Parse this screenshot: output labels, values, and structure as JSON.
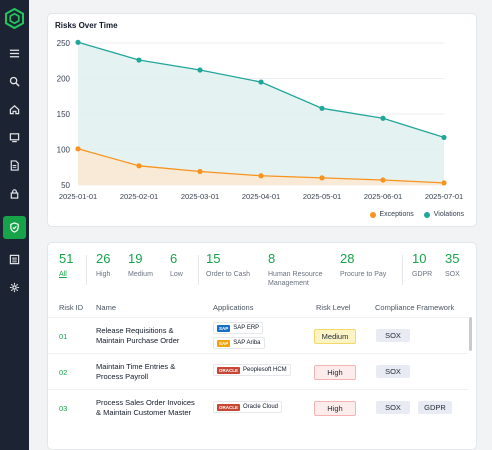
{
  "sidebar": {
    "items": [
      {
        "icon": "menu-icon"
      },
      {
        "icon": "search-icon"
      },
      {
        "icon": "home-icon"
      },
      {
        "icon": "monitor-icon"
      },
      {
        "icon": "document-icon"
      },
      {
        "icon": "lock-icon"
      },
      {
        "icon": "shield-icon",
        "active": true
      },
      {
        "icon": "list-icon"
      },
      {
        "icon": "gear-icon"
      }
    ],
    "accent": "#16a34a",
    "background": "#1c2434"
  },
  "chart_data": {
    "type": "area",
    "title": "Risks Over Time",
    "categories": [
      "2025-01-01",
      "2025-02-01",
      "2025-03-01",
      "2025-04-01",
      "2025-05-01",
      "2025-06-01",
      "2025-07-01"
    ],
    "yticks": [
      250,
      200,
      150,
      100,
      50
    ],
    "ylim": [
      50,
      250
    ],
    "grid": true,
    "legend_position": "bottom-right",
    "series": [
      {
        "name": "Exceptions",
        "color": "#f7931e",
        "values": [
          101,
          77,
          69,
          63,
          60,
          57,
          53
        ]
      },
      {
        "name": "Violations",
        "color": "#21a69a",
        "values": [
          251,
          226,
          212,
          195,
          158,
          144,
          117
        ]
      }
    ]
  },
  "stats": [
    {
      "value": "51",
      "label": "All",
      "active": true
    },
    {
      "value": "26",
      "label": "High"
    },
    {
      "value": "19",
      "label": "Medium"
    },
    {
      "value": "6",
      "label": "Low"
    },
    {
      "value": "15",
      "label": "Order to Cash"
    },
    {
      "value": "8",
      "label": "Human Resource Management"
    },
    {
      "value": "28",
      "label": "Procure to Pay"
    },
    {
      "value": "10",
      "label": "GDPR"
    },
    {
      "value": "35",
      "label": "SOX"
    }
  ],
  "table": {
    "headers": {
      "id": "Risk ID",
      "name": "Name",
      "apps": "Applications",
      "level": "Risk Level",
      "framework": "Compliance Framework"
    },
    "rows": [
      {
        "id": "01",
        "name_line1": "Release Requisitions &",
        "name_line2": "Maintain Purchase Order",
        "apps": [
          {
            "logo": "SAP",
            "label": "SAP ERP",
            "logo_color": "#1870c5"
          },
          {
            "logo": "SAP",
            "label": "SAP Ariba",
            "logo_color": "#f0a30a"
          }
        ],
        "level": "Medium",
        "frameworks": [
          "SOX"
        ]
      },
      {
        "id": "02",
        "name_line1": "Maintain Time Entries &",
        "name_line2": "Process Payroll",
        "apps": [
          {
            "logo": "ORACLE",
            "label": "Peoplesoft HCM",
            "logo_color": "#c74634"
          }
        ],
        "level": "High",
        "frameworks": [
          "SOX"
        ]
      },
      {
        "id": "03",
        "name_line1": "Process Sales Order Invoices",
        "name_line2": "& Maintain Customer Master",
        "apps": [
          {
            "logo": "ORACLE",
            "label": "Oracle Cloud",
            "logo_color": "#c74634"
          }
        ],
        "level": "High",
        "frameworks": [
          "SOX",
          "GDPR"
        ]
      }
    ]
  }
}
